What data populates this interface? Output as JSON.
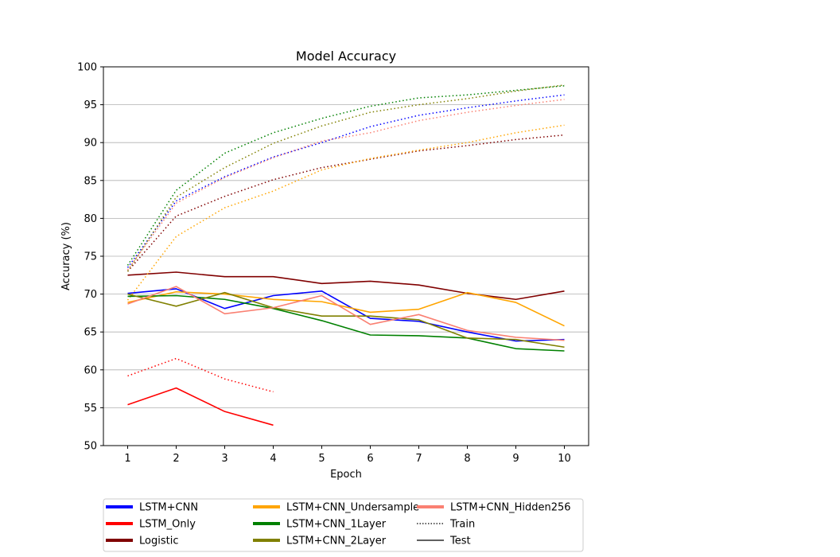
{
  "chart_data": {
    "type": "line",
    "title": "Model Accuracy",
    "xlabel": "Epoch",
    "ylabel": "Accuracy (%)",
    "xlim": [
      0.5,
      10.5
    ],
    "ylim": [
      50,
      100
    ],
    "x_ticks": [
      1,
      2,
      3,
      4,
      5,
      6,
      7,
      8,
      9,
      10
    ],
    "y_ticks": [
      50,
      55,
      60,
      65,
      70,
      75,
      80,
      85,
      90,
      95,
      100
    ],
    "grid": "y",
    "legend_position": "below",
    "series": [
      {
        "name": "LSTM+CNN",
        "color": "#0000ff",
        "train": [
          73.5,
          82.3,
          85.5,
          88.1,
          90.0,
          92.1,
          93.6,
          94.6,
          95.5,
          96.3
        ],
        "test": [
          70.1,
          70.7,
          68.1,
          69.8,
          70.4,
          66.8,
          66.4,
          65.0,
          63.8,
          64.0
        ]
      },
      {
        "name": "LSTM_Only",
        "color": "#ff0000",
        "train": [
          59.2,
          61.5,
          58.8,
          57.1
        ],
        "test": [
          55.4,
          57.6,
          54.5,
          52.7
        ]
      },
      {
        "name": "Logistic",
        "color": "#800000",
        "train": [
          73.0,
          80.3,
          82.9,
          85.1,
          86.7,
          87.8,
          88.9,
          89.6,
          90.4,
          91.0
        ],
        "test": [
          72.5,
          72.9,
          72.3,
          72.3,
          71.4,
          71.7,
          71.2,
          70.1,
          69.3,
          70.4
        ]
      },
      {
        "name": "LSTM+CNN_Undersample",
        "color": "#ffa500",
        "train": [
          69.2,
          77.6,
          81.4,
          83.6,
          86.4,
          87.9,
          89.0,
          90.0,
          91.3,
          92.3
        ],
        "test": [
          68.9,
          70.3,
          70.0,
          69.3,
          69.0,
          67.6,
          68.0,
          70.2,
          68.9,
          65.8
        ]
      },
      {
        "name": "LSTM+CNN_1Layer",
        "color": "#008000",
        "train": [
          73.8,
          83.7,
          88.6,
          91.3,
          93.2,
          94.8,
          95.9,
          96.3,
          96.9,
          97.5
        ],
        "test": [
          69.7,
          69.8,
          69.3,
          68.1,
          66.5,
          64.6,
          64.5,
          64.2,
          62.8,
          62.5
        ]
      },
      {
        "name": "LSTM+CNN_2Layer",
        "color": "#808000",
        "train": [
          73.0,
          82.8,
          86.7,
          89.9,
          92.2,
          94.0,
          95.0,
          95.8,
          96.8,
          97.6
        ],
        "test": [
          70.0,
          68.4,
          70.2,
          68.2,
          67.1,
          67.1,
          66.6,
          64.2,
          64.0,
          63.0
        ]
      },
      {
        "name": "LSTM+CNN_Hidden256",
        "color": "#fa8072",
        "train": [
          73.2,
          82.0,
          85.4,
          88.0,
          90.2,
          91.3,
          92.9,
          94.0,
          94.9,
          95.7
        ],
        "test": [
          68.7,
          71.0,
          67.4,
          68.2,
          69.8,
          66.0,
          67.3,
          65.2,
          64.3,
          63.9
        ]
      }
    ],
    "style_legend": [
      {
        "label": "Train",
        "dash": "dotted"
      },
      {
        "label": "Test",
        "dash": "solid"
      }
    ]
  }
}
